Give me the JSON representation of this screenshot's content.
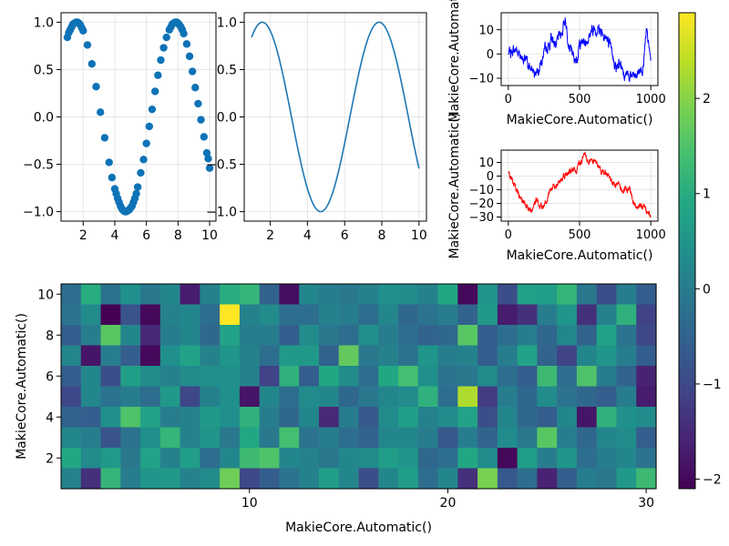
{
  "chart_data": [
    {
      "id": "scatter",
      "type": "scatter",
      "x": [
        1.0,
        1.09,
        1.18,
        1.27,
        1.36,
        1.45,
        1.55,
        1.64,
        1.73,
        1.82,
        1.91,
        2.0,
        2.27,
        2.55,
        2.82,
        3.09,
        3.36,
        3.64,
        3.82,
        4.0,
        4.09,
        4.18,
        4.27,
        4.36,
        4.45,
        4.55,
        4.64,
        4.73,
        4.82,
        4.91,
        5.0,
        5.09,
        5.18,
        5.27,
        5.36,
        5.45,
        5.64,
        5.82,
        6.0,
        6.18,
        6.36,
        6.55,
        6.73,
        6.91,
        7.09,
        7.27,
        7.45,
        7.55,
        7.64,
        7.73,
        7.82,
        7.91,
        8.0,
        8.09,
        8.18,
        8.27,
        8.36,
        8.55,
        8.73,
        8.91,
        9.09,
        9.27,
        9.45,
        9.64,
        9.82,
        9.91,
        10.0
      ],
      "y": [
        0.84,
        0.89,
        0.92,
        0.95,
        0.98,
        0.99,
        1.0,
        1.0,
        0.99,
        0.97,
        0.94,
        0.91,
        0.76,
        0.56,
        0.32,
        0.05,
        -0.22,
        -0.48,
        -0.64,
        -0.76,
        -0.81,
        -0.86,
        -0.9,
        -0.94,
        -0.97,
        -0.99,
        -1.0,
        -1.0,
        -0.99,
        -0.98,
        -0.96,
        -0.94,
        -0.9,
        -0.86,
        -0.81,
        -0.74,
        -0.59,
        -0.45,
        -0.28,
        -0.1,
        0.08,
        0.27,
        0.44,
        0.6,
        0.73,
        0.84,
        0.92,
        0.95,
        0.98,
        0.99,
        1.0,
        1.0,
        0.99,
        0.97,
        0.95,
        0.92,
        0.88,
        0.77,
        0.64,
        0.48,
        0.31,
        0.14,
        -0.03,
        -0.21,
        -0.38,
        -0.44,
        -0.54
      ],
      "xlim": [
        0.6,
        10.4
      ],
      "ylim": [
        -1.1,
        1.1
      ],
      "xticks": [
        2,
        4,
        6,
        8,
        10
      ],
      "yticks": [
        -1.0,
        -0.5,
        0.0,
        0.5,
        1.0
      ],
      "xticklabels": [
        "2",
        "4",
        "6",
        "8",
        "10"
      ],
      "yticklabels": [
        "−1.0",
        "−0.5",
        "0.0",
        "0.5",
        "1.0"
      ],
      "color": "#0e72b6",
      "grid": true
    },
    {
      "id": "line",
      "type": "line",
      "function_of_x": "sin",
      "xrange": [
        1,
        10
      ],
      "xlim": [
        0.6,
        10.4
      ],
      "ylim": [
        -1.1,
        1.1
      ],
      "xticks": [
        2,
        4,
        6,
        8,
        10
      ],
      "yticks": [
        -1.0,
        -0.5,
        0.0,
        0.5,
        1.0
      ],
      "xticklabels": [
        "2",
        "4",
        "6",
        "8",
        "10"
      ],
      "yticklabels": [
        "−1.0",
        "−0.5",
        "0.0",
        "0.5",
        "1.0"
      ],
      "color": "#1f77b4",
      "grid": true
    },
    {
      "id": "walk_blue",
      "type": "line",
      "n": 1000,
      "keypoints": [
        [
          1,
          0
        ],
        [
          60,
          2
        ],
        [
          120,
          -3
        ],
        [
          180,
          -8
        ],
        [
          240,
          -2
        ],
        [
          300,
          6
        ],
        [
          340,
          4
        ],
        [
          380,
          10
        ],
        [
          400,
          15
        ],
        [
          430,
          3
        ],
        [
          470,
          -4
        ],
        [
          500,
          4
        ],
        [
          550,
          6
        ],
        [
          580,
          9
        ],
        [
          620,
          11
        ],
        [
          660,
          10
        ],
        [
          700,
          5
        ],
        [
          750,
          -4
        ],
        [
          800,
          -6
        ],
        [
          850,
          -10
        ],
        [
          900,
          -9
        ],
        [
          940,
          -5
        ],
        [
          970,
          8
        ],
        [
          1000,
          -3
        ]
      ],
      "xlim": [
        -50,
        1050
      ],
      "ylim": [
        -13,
        17
      ],
      "xticks": [
        0,
        500,
        1000
      ],
      "yticks": [
        -10,
        0,
        10
      ],
      "xticklabels": [
        "0",
        "500",
        "1000"
      ],
      "yticklabels": [
        "−10",
        "0",
        "10"
      ],
      "xlabel": "MakieCore.Automatic()",
      "ylabel": "MakieCore.Automatic()",
      "color": "#0000ff",
      "grid": true
    },
    {
      "id": "walk_red",
      "type": "line",
      "n": 1000,
      "keypoints": [
        [
          1,
          2
        ],
        [
          60,
          -10
        ],
        [
          100,
          -18
        ],
        [
          150,
          -25
        ],
        [
          200,
          -18
        ],
        [
          250,
          -22
        ],
        [
          300,
          -10
        ],
        [
          350,
          -5
        ],
        [
          400,
          0
        ],
        [
          430,
          2
        ],
        [
          470,
          5
        ],
        [
          500,
          8
        ],
        [
          530,
          14
        ],
        [
          560,
          10
        ],
        [
          600,
          12
        ],
        [
          650,
          5
        ],
        [
          700,
          0
        ],
        [
          750,
          -5
        ],
        [
          800,
          -10
        ],
        [
          850,
          -12
        ],
        [
          900,
          -20
        ],
        [
          950,
          -22
        ],
        [
          1000,
          -28
        ]
      ],
      "xlim": [
        -50,
        1050
      ],
      "ylim": [
        -33,
        19
      ],
      "xticks": [
        0,
        500,
        1000
      ],
      "yticks": [
        -30,
        -20,
        -10,
        0,
        10
      ],
      "xticklabels": [
        "0",
        "500",
        "1000"
      ],
      "yticklabels": [
        "−30",
        "−20",
        "−10",
        "0",
        "10"
      ],
      "xlabel": "MakieCore.Automatic()",
      "ylabel": "MakieCore.Automatic()",
      "color": "#ff0000",
      "grid": true
    },
    {
      "id": "heatmap",
      "type": "heatmap",
      "nx": 30,
      "ny": 10,
      "z_rows_top_to_bottom": [
        [
          -0.3,
          1.0,
          -0.2,
          0.4,
          -0.1,
          0.2,
          -1.7,
          0.1,
          1.0,
          1.2,
          -0.5,
          -1.9,
          0.2,
          0.0,
          -0.1,
          0.1,
          0.4,
          0.3,
          0.1,
          0.9,
          -2.0,
          0.5,
          -0.9,
          0.8,
          0.7,
          1.2,
          -0.1,
          -0.9,
          0.0,
          -0.6
        ],
        [
          -0.2,
          0.3,
          -2.1,
          -0.8,
          -2.0,
          0.1,
          0.2,
          -0.3,
          2.9,
          0.1,
          0.3,
          -0.3,
          -0.3,
          0.1,
          0.0,
          -0.3,
          0.2,
          -0.4,
          -0.2,
          0.0,
          -0.5,
          0.6,
          -1.7,
          -1.4,
          0.0,
          0.5,
          -1.4,
          0.1,
          1.1,
          -1.1
        ],
        [
          -0.6,
          0.0,
          1.6,
          0.2,
          -1.5,
          0.0,
          0.2,
          -0.4,
          0.8,
          0.0,
          0.0,
          -0.6,
          0.3,
          -0.1,
          -0.3,
          0.4,
          0.0,
          -0.3,
          -0.5,
          -0.4,
          1.6,
          -0.6,
          -0.3,
          0.0,
          -0.4,
          0.2,
          -0.5,
          0.8,
          -0.2,
          -1.0
        ],
        [
          0.2,
          -1.8,
          0.0,
          -0.6,
          -2.0,
          0.4,
          0.8,
          0.1,
          0.5,
          0.1,
          -0.3,
          0.6,
          0.6,
          -0.5,
          1.7,
          -0.1,
          0.1,
          -0.2,
          0.5,
          0.0,
          0.1,
          -0.6,
          0.0,
          0.8,
          -0.5,
          -1.1,
          0.2,
          0.5,
          0.0,
          -0.6
        ],
        [
          -0.6,
          0.2,
          -0.9,
          0.7,
          0.3,
          0.1,
          0.3,
          0.4,
          0.4,
          0.1,
          -1.1,
          1.1,
          -0.6,
          0.9,
          0.3,
          -0.3,
          0.9,
          1.4,
          0.4,
          -0.2,
          -0.1,
          0.3,
          -0.3,
          -0.6,
          1.3,
          -0.3,
          1.5,
          0.0,
          -0.5,
          -1.6
        ],
        [
          -1.0,
          0.2,
          -0.2,
          0.0,
          -0.3,
          0.6,
          -1.0,
          0.1,
          0.4,
          -1.8,
          0.2,
          -0.3,
          0.3,
          0.2,
          -0.4,
          -0.1,
          0.2,
          0.3,
          1.1,
          -0.3,
          2.3,
          -1.2,
          0.0,
          -0.4,
          0.3,
          -0.2,
          -0.4,
          -0.6,
          0.0,
          -1.7
        ],
        [
          -0.5,
          -0.6,
          0.4,
          1.5,
          0.8,
          0.0,
          0.1,
          0.6,
          0.4,
          1.1,
          0.0,
          -0.4,
          0.2,
          -1.5,
          0.0,
          -0.7,
          0.3,
          0.7,
          0.1,
          0.3,
          0.8,
          -0.9,
          0.2,
          -0.4,
          -0.6,
          0.2,
          -1.8,
          1.1,
          0.4,
          0.3
        ],
        [
          0.2,
          0.0,
          -0.8,
          -0.2,
          0.4,
          1.2,
          0.1,
          0.5,
          -0.1,
          0.9,
          -0.1,
          1.4,
          -0.2,
          0.0,
          -0.3,
          -0.5,
          0.2,
          0.2,
          0.0,
          -0.7,
          0.0,
          -0.5,
          0.3,
          -0.1,
          1.6,
          0.0,
          -0.4,
          0.2,
          0.3,
          -0.6
        ],
        [
          0.9,
          0.3,
          0.6,
          -0.1,
          0.8,
          0.1,
          0.7,
          -0.3,
          0.2,
          1.3,
          1.5,
          0.2,
          0.1,
          -0.1,
          0.2,
          0.3,
          0.7,
          0.5,
          -0.4,
          -0.3,
          0.9,
          0.3,
          -2.0,
          0.7,
          0.0,
          0.5,
          -0.3,
          0.0,
          0.2,
          -0.2
        ],
        [
          0.1,
          -1.4,
          1.2,
          0.0,
          0.5,
          0.6,
          0.1,
          0.3,
          1.8,
          -1.0,
          -0.6,
          -0.2,
          0.1,
          0.7,
          0.2,
          -0.9,
          0.2,
          0.7,
          -0.3,
          0.2,
          -1.4,
          1.9,
          -0.7,
          -0.3,
          -1.6,
          -0.6,
          0.0,
          -0.1,
          0.6,
          1.3
        ]
      ],
      "xlim": [
        0.5,
        30.5
      ],
      "ylim": [
        0.5,
        10.5
      ],
      "xticks": [
        10,
        20,
        30
      ],
      "yticks": [
        2,
        4,
        6,
        8,
        10
      ],
      "xticklabels": [
        "10",
        "20",
        "30"
      ],
      "yticklabels": [
        "2",
        "4",
        "6",
        "8",
        "10"
      ],
      "xlabel": "MakieCore.Automatic()",
      "ylabel": "MakieCore.Automatic()",
      "colormap": "viridis",
      "clim": [
        -2.1,
        2.9
      ]
    },
    {
      "id": "colorbar",
      "type": "colorbar",
      "colormap": "viridis",
      "clim": [
        -2.1,
        2.9
      ],
      "ticks": [
        -2,
        -1,
        0,
        1,
        2
      ],
      "ticklabels": [
        "−2",
        "−1",
        "0",
        "1",
        "2"
      ]
    }
  ]
}
